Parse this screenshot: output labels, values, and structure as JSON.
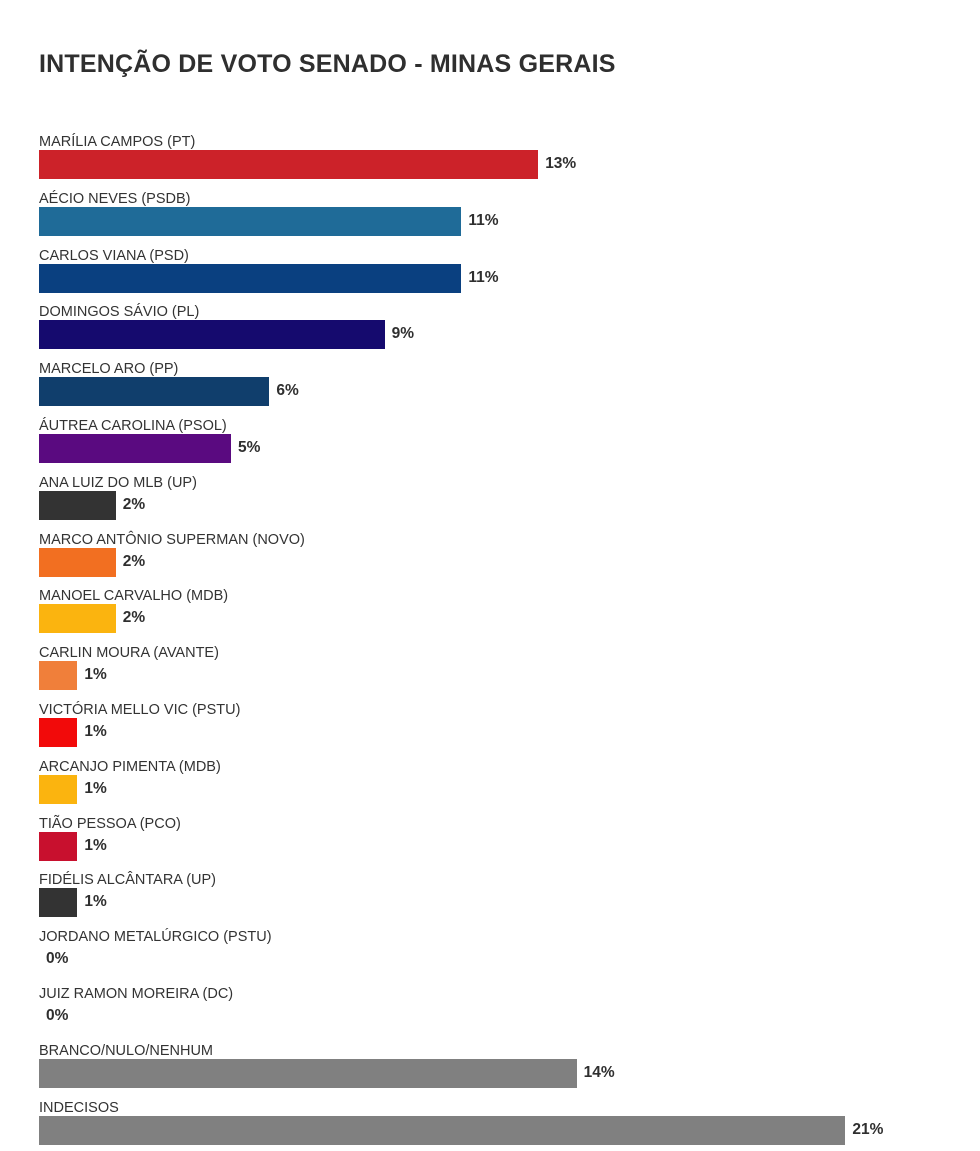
{
  "chart_data": {
    "type": "bar",
    "orientation": "horizontal",
    "title": "INTENÇÃO DE VOTO SENADO - MINAS GERAIS",
    "unit": "%",
    "categories": [
      "MARÍLIA CAMPOS (PT)",
      "AÉCIO NEVES (PSDB)",
      "CARLOS VIANA (PSD)",
      "DOMINGOS SÁVIO (PL)",
      "MARCELO ARO (PP)",
      "ÁUTREA CAROLINA (PSOL)",
      "ANA LUIZ DO MLB (UP)",
      "MARCO ANTÔNIO SUPERMAN (NOVO)",
      "MANOEL CARVALHO (MDB)",
      "CARLIN MOURA (AVANTE)",
      "VICTÓRIA MELLO VIC (PSTU)",
      "ARCANJO PIMENTA (MDB)",
      "TIÃO PESSOA (PCO)",
      "FIDÉLIS ALCÂNTARA (UP)",
      "JORDANO METALÚRGICO (PSTU)",
      "JUIZ RAMON MOREIRA (DC)",
      "BRANCO/NULO/NENHUM",
      "INDECISOS"
    ],
    "values": [
      13,
      11,
      11,
      9,
      6,
      5,
      2,
      2,
      2,
      1,
      1,
      1,
      1,
      1,
      0,
      0,
      14,
      21
    ],
    "value_labels": [
      "13%",
      "11%",
      "11%",
      "9%",
      "6%",
      "5%",
      "2%",
      "2%",
      "2%",
      "1%",
      "1%",
      "1%",
      "1%",
      "1%",
      "0%",
      "0%",
      "14%",
      "21%"
    ],
    "colors": [
      "#cc2229",
      "#1f6b98",
      "#0a4080",
      "#150a6e",
      "#103e6c",
      "#5a0a80",
      "#333333",
      "#f26f21",
      "#fbb40f",
      "#f07f3a",
      "#f20a0a",
      "#fbb40f",
      "#c8102e",
      "#333333",
      "#333333",
      "#333333",
      "#808080",
      "#808080"
    ],
    "xlim": [
      0,
      21
    ],
    "grid": false,
    "legend": "none"
  }
}
